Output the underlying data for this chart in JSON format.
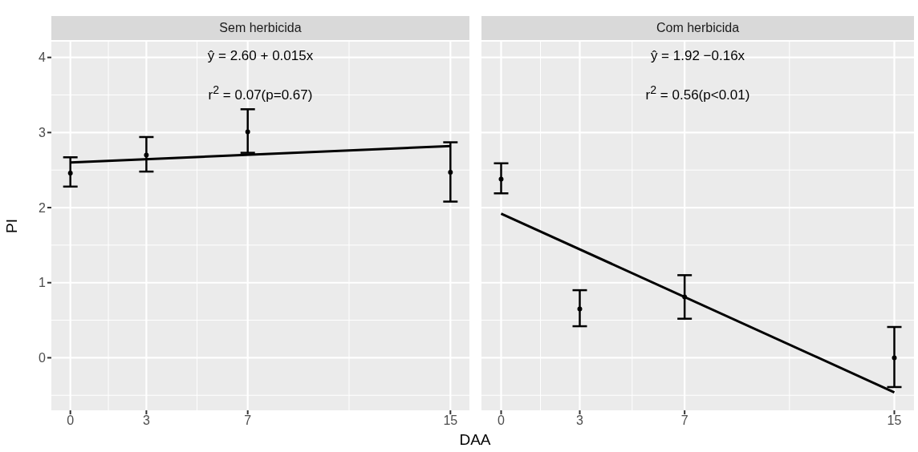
{
  "chart_data": [
    {
      "type": "scatter",
      "title": "Sem herbicida",
      "ylabel": "PI",
      "xlabel": "DAA",
      "xlim": [
        -0.75,
        15.75
      ],
      "xticks": [
        0,
        3,
        7,
        15
      ],
      "ylim": [
        -0.7,
        4.21
      ],
      "yticks": [
        0,
        1,
        2,
        3,
        4
      ],
      "grid": true,
      "annotations": [
        "ŷ = 2.60 + 0.015x",
        "r$^{2}$ = 0.07(p=0.67)"
      ],
      "series": [
        {
          "marker": "circle",
          "color": "#000000",
          "x": [
            0,
            3,
            7,
            15
          ],
          "values": [
            2.46,
            2.7,
            3.01,
            2.47
          ],
          "errors": [
            [
              2.28,
              2.67
            ],
            [
              2.48,
              2.94
            ],
            [
              2.73,
              3.31
            ],
            [
              2.08,
              2.87
            ]
          ]
        },
        {
          "type": "line",
          "marker": "none",
          "color": "#000000",
          "x": [
            0,
            15
          ],
          "values": [
            2.6,
            2.82
          ]
        }
      ]
    },
    {
      "type": "scatter",
      "title": "Com herbicida",
      "xlim": [
        -0.75,
        15.75
      ],
      "xticks": [
        0,
        3,
        7,
        15
      ],
      "ylim": [
        -0.7,
        4.21
      ],
      "yticks": [
        0,
        1,
        2,
        3,
        4
      ],
      "grid": true,
      "tick_labels": "x",
      "annotations": [
        "ŷ = 1.92 −0.16x",
        "r$^{2}$ = 0.56(p<0.01)"
      ],
      "series": [
        {
          "marker": "circle",
          "color": "#000000",
          "x": [
            0,
            3,
            7,
            15
          ],
          "values": [
            2.38,
            0.65,
            0.81,
            0.0
          ],
          "errors": [
            [
              2.19,
              2.59
            ],
            [
              0.42,
              0.9
            ],
            [
              0.52,
              1.1
            ],
            [
              -0.39,
              0.41
            ]
          ]
        },
        {
          "type": "line",
          "marker": "none",
          "color": "#000000",
          "x": [
            0,
            15
          ],
          "values": [
            1.92,
            -0.46
          ]
        }
      ]
    }
  ]
}
